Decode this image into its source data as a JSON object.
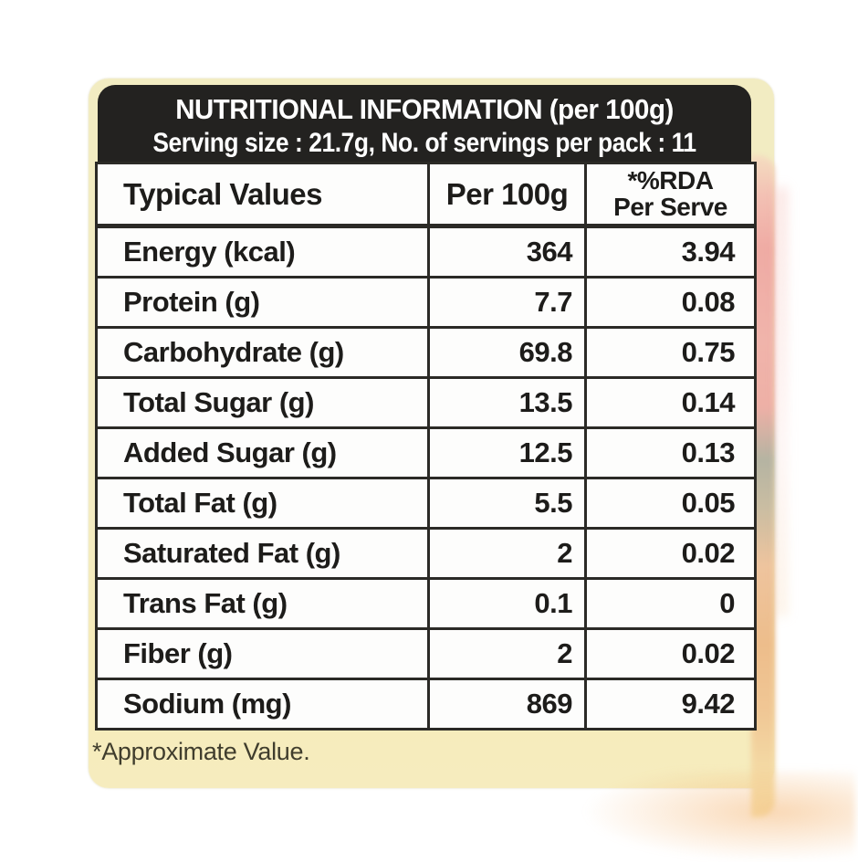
{
  "label": {
    "title": "NUTRITIONAL INFORMATION (per 100g)",
    "serving_line": "Serving size : 21.7g, No. of servings per pack : 11",
    "footnote": "*Approximate Value."
  },
  "table": {
    "col1_header": "Typical Values",
    "col2_header": "Per 100g",
    "col3_header_line1": "*%RDA",
    "col3_header_line2": "Per Serve",
    "rows": [
      {
        "label": "Energy (kcal)",
        "per_100g": "364",
        "rda_per_serve": "3.94"
      },
      {
        "label": "Protein (g)",
        "per_100g": "7.7",
        "rda_per_serve": "0.08"
      },
      {
        "label": "Carbohydrate (g)",
        "per_100g": "69.8",
        "rda_per_serve": "0.75"
      },
      {
        "label": "Total Sugar (g)",
        "per_100g": "13.5",
        "rda_per_serve": "0.14"
      },
      {
        "label": "Added Sugar (g)",
        "per_100g": "12.5",
        "rda_per_serve": "0.13"
      },
      {
        "label": "Total Fat (g)",
        "per_100g": "5.5",
        "rda_per_serve": "0.05"
      },
      {
        "label": "Saturated Fat (g)",
        "per_100g": "2",
        "rda_per_serve": "0.02"
      },
      {
        "label": "Trans Fat (g)",
        "per_100g": "0.1",
        "rda_per_serve": "0"
      },
      {
        "label": "Fiber (g)",
        "per_100g": "2",
        "rda_per_serve": "0.02"
      },
      {
        "label": "Sodium (mg)",
        "per_100g": "869",
        "rda_per_serve": "9.42"
      }
    ]
  },
  "colors": {
    "header_bg": "#232220",
    "header_text": "#ffffff",
    "panel_cream": "#f3ecc4",
    "table_border": "#2b2a26",
    "table_bg": "#fdfdfc",
    "footnote_text": "#403d2d",
    "bleed_pink": "#efaba4",
    "bleed_peach": "#edbd8b"
  }
}
